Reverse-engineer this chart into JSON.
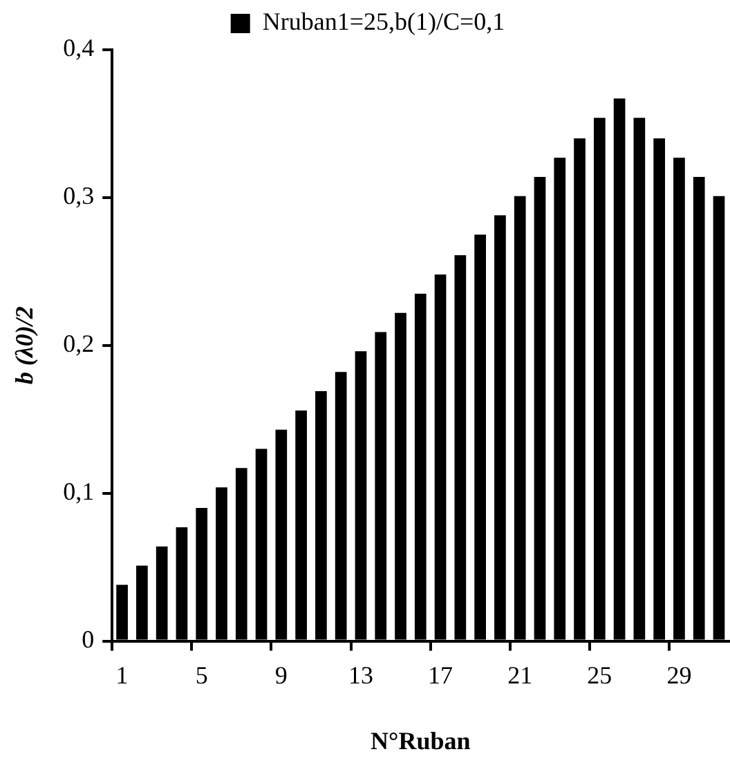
{
  "chart_data": {
    "type": "bar",
    "xlabel": "N°Ruban",
    "ylabel": "b (λ0)/2",
    "categories": [
      "1",
      null,
      null,
      null,
      "5",
      null,
      null,
      null,
      "9",
      null,
      null,
      null,
      "13",
      null,
      null,
      null,
      "17",
      null,
      null,
      null,
      "21",
      null,
      null,
      null,
      "25",
      null,
      null,
      null,
      "29",
      null,
      null
    ],
    "series": [
      {
        "name": "Nruban1=25,b(1)/C=0,1",
        "color": "#000000",
        "values": [
          0.038,
          0.051,
          0.064,
          0.077,
          0.09,
          0.104,
          0.117,
          0.13,
          0.143,
          0.156,
          0.169,
          0.182,
          0.196,
          0.209,
          0.222,
          0.235,
          0.248,
          0.261,
          0.275,
          0.288,
          0.301,
          0.314,
          0.327,
          0.34,
          0.354,
          0.367,
          0.354,
          0.34,
          0.327,
          0.314,
          0.301
        ]
      }
    ],
    "ylim": [
      0,
      0.4
    ],
    "yticks": [
      0,
      {
        "value": 0.1,
        "label": "0,1"
      },
      {
        "value": 0.2,
        "label": "0,2"
      },
      {
        "value": 0.3,
        "label": "0,3"
      },
      {
        "value": 0.4,
        "label": "0,4"
      }
    ],
    "grid": false,
    "legend": "top"
  }
}
